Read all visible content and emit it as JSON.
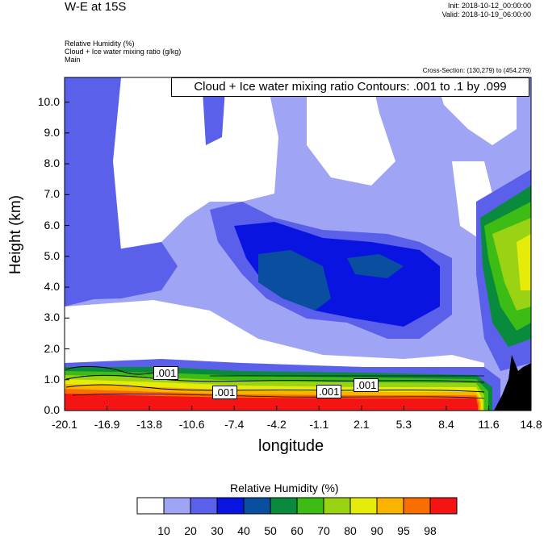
{
  "header": {
    "title": "W-E at 15S",
    "init": "Init: 2018-10-12_00:00:00",
    "valid": "Valid: 2018-10-19_06:00:00",
    "var1": "Relative Humidity   (%)",
    "var2": "Cloud + Ice water mixing ratio   (g/kg)",
    "var3": "Main",
    "cross_section": "Cross-Section: (130,279) to (454,279)",
    "contour_note": "Cloud + Ice water mixing ratio Contours: .001 to .1 by .099"
  },
  "chart_data": {
    "type": "heatmap",
    "xlabel": "longitude",
    "ylabel": "Height (km)",
    "x_ticks": [
      "-20.1",
      "-16.9",
      "-13.8",
      "-10.6",
      "-7.4",
      "-4.2",
      "-1.1",
      "2.1",
      "5.3",
      "8.4",
      "11.6",
      "14.8"
    ],
    "y_ticks": [
      "0.0",
      "1.0",
      "2.0",
      "3.0",
      "4.0",
      "5.0",
      "6.0",
      "7.0",
      "8.0",
      "9.0",
      "10.0"
    ],
    "ylim": [
      0,
      10.8
    ],
    "contour_labels": [
      ".001",
      ".001",
      ".001",
      ".001"
    ],
    "legend": {
      "title": "Relative Humidity  (%)",
      "levels": [
        "10",
        "20",
        "30",
        "40",
        "50",
        "60",
        "70",
        "80",
        "90",
        "95",
        "98"
      ],
      "colors": [
        "#ffffff",
        "#a0a4f4",
        "#5a60ea",
        "#0a14e0",
        "#0a4ea0",
        "#0a8a3c",
        "#3cbc14",
        "#9ad214",
        "#e6ec0a",
        "#fab400",
        "#fa6e00",
        "#f51414"
      ]
    }
  }
}
